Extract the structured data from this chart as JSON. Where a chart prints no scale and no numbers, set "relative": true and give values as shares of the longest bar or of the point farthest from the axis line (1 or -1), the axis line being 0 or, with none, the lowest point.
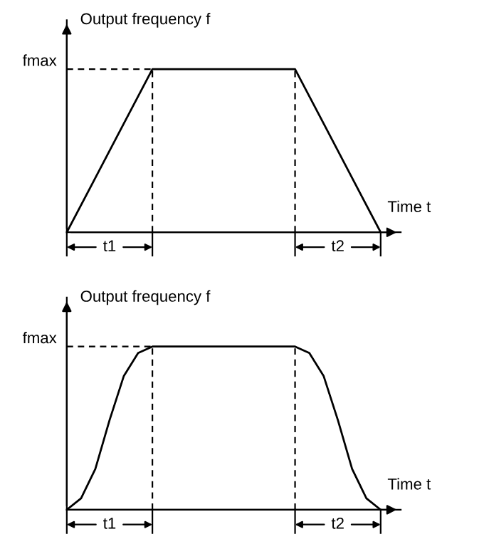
{
  "chart_data": [
    {
      "type": "line",
      "relative": true,
      "xlabel": "Time t",
      "ylabel": "Output frequency f",
      "marker": "none",
      "line_style": "solid",
      "legend": false,
      "tick_labels": false,
      "categories": [
        null,
        null,
        null,
        null,
        null,
        null,
        null,
        null,
        null,
        null,
        null,
        null
      ],
      "series": [
        {
          "color": "#000000",
          "values": [
            0,
            0.333,
            0.667,
            1,
            1,
            1,
            1,
            1,
            1,
            0.667,
            0.333,
            0
          ]
        }
      ],
      "ref_lines": [
        {
          "axis": "y",
          "value": 1,
          "label": "fmax",
          "line_style": "dashed",
          "color": "#000000"
        }
      ],
      "annotations": [
        "t1",
        "t2"
      ]
    },
    {
      "type": "line",
      "relative": true,
      "xlabel": "Time t",
      "ylabel": "Output frequency f",
      "marker": "none",
      "line_style": "solid",
      "legend": false,
      "tick_labels": false,
      "categories": [
        null,
        null,
        null,
        null,
        null,
        null,
        null,
        null,
        null,
        null,
        null,
        null,
        null,
        null,
        null,
        null,
        null,
        null,
        null,
        null,
        null,
        null,
        null
      ],
      "series": [
        {
          "color": "#000000",
          "values": [
            0,
            0.07,
            0.25,
            0.55,
            0.82,
            0.96,
            1,
            1,
            1,
            1,
            1,
            1,
            1,
            1,
            1,
            1,
            1,
            0.96,
            0.82,
            0.55,
            0.25,
            0.07,
            0
          ]
        }
      ],
      "ref_lines": [
        {
          "axis": "y",
          "value": 1,
          "label": "fmax",
          "line_style": "dashed",
          "color": "#000000"
        }
      ],
      "annotations": [
        "t1",
        "t2"
      ]
    }
  ]
}
